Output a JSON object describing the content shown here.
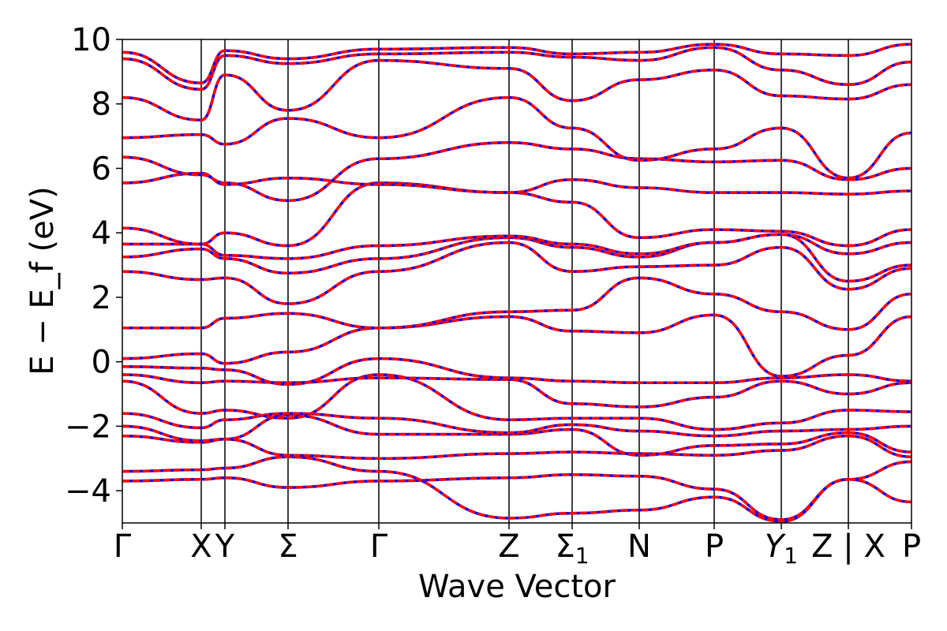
{
  "chart_data": {
    "type": "line",
    "title": "",
    "xlabel": "Wave Vector",
    "ylabel": "E − E_f (eV)",
    "ylim": [
      -5,
      10
    ],
    "yticks": [
      -4,
      -2,
      0,
      2,
      4,
      6,
      8,
      10
    ],
    "ytick_labels": [
      "−4",
      "−2",
      "0",
      "2",
      "4",
      "6",
      "8",
      "10"
    ],
    "xlim": [
      0,
      10
    ],
    "kpoints": [
      {
        "label": "Γ",
        "x": 0
      },
      {
        "label": "X",
        "x": 1.0
      },
      {
        "label": "Y",
        "x": 1.3
      },
      {
        "label": "Σ",
        "x": 2.1
      },
      {
        "label": "Γ",
        "x": 3.25
      },
      {
        "label": "Z",
        "x": 4.9
      },
      {
        "label": "Σ",
        "sub": "1",
        "x": 5.7
      },
      {
        "label": "N",
        "x": 6.55
      },
      {
        "label": "P",
        "x": 7.5
      },
      {
        "label": "Y",
        "sub": "1",
        "x": 8.35,
        "italic": true
      },
      {
        "label": "Z | X",
        "x": 9.2
      },
      {
        "label": "P",
        "x": 10.0
      }
    ],
    "vlines": [
      1.0,
      1.3,
      2.1,
      3.25,
      4.9,
      5.7,
      6.55,
      7.5,
      8.35,
      9.2
    ],
    "segment_breaks": [
      9.2
    ],
    "series_colors": {
      "primary": "#0000ff",
      "overlay": "#ff0000"
    },
    "band_x": [
      0,
      1.0,
      1.3,
      2.1,
      3.25,
      4.9,
      5.7,
      6.55,
      7.5,
      8.35,
      9.2,
      10.0
    ],
    "bands": [
      [
        -3.7,
        -3.65,
        -3.6,
        -3.9,
        -3.7,
        -3.6,
        -3.5,
        -3.55,
        -3.95,
        -4.9,
        -3.65,
        -4.35
      ],
      [
        -3.4,
        -3.35,
        -3.3,
        -2.95,
        -3.4,
        -4.85,
        -4.7,
        -4.6,
        -4.2,
        -4.95,
        -3.65,
        -3.1
      ],
      [
        -2.3,
        -2.5,
        -2.4,
        -2.9,
        -3.0,
        -2.85,
        -2.8,
        -2.85,
        -2.9,
        -2.75,
        -2.3,
        -2.95
      ],
      [
        -2.0,
        -2.45,
        -2.4,
        -1.65,
        -2.25,
        -2.25,
        -2.1,
        -2.9,
        -2.6,
        -2.55,
        -2.2,
        -2.8
      ],
      [
        -1.6,
        -2.05,
        -1.8,
        -1.6,
        -1.75,
        -2.2,
        -1.95,
        -2.15,
        -2.3,
        -2.15,
        -2.1,
        -2.0
      ],
      [
        -0.6,
        -1.6,
        -1.5,
        -1.75,
        -0.4,
        -1.8,
        -1.75,
        -1.75,
        -2.1,
        -1.9,
        -1.5,
        -1.55
      ],
      [
        -0.4,
        -0.65,
        -0.6,
        -0.65,
        -0.5,
        -0.55,
        -1.3,
        -1.4,
        -1.1,
        -0.6,
        -1.0,
        -0.65
      ],
      [
        -0.15,
        -0.2,
        -0.25,
        -0.7,
        0.1,
        -0.5,
        -0.6,
        -0.65,
        -0.65,
        -0.5,
        -0.4,
        -0.6
      ],
      [
        0.1,
        0.25,
        -0.05,
        0.3,
        1.05,
        1.4,
        0.95,
        0.9,
        1.45,
        -0.45,
        0.2,
        1.4
      ],
      [
        1.05,
        1.05,
        1.35,
        1.5,
        1.05,
        1.55,
        1.6,
        2.6,
        2.1,
        1.55,
        1.0,
        2.1
      ],
      [
        2.8,
        2.55,
        2.6,
        1.8,
        2.8,
        3.7,
        2.8,
        2.95,
        3.0,
        3.55,
        2.25,
        2.9
      ],
      [
        3.25,
        3.5,
        3.2,
        2.75,
        3.2,
        3.85,
        3.55,
        3.25,
        3.7,
        3.95,
        2.5,
        3.0
      ],
      [
        3.65,
        3.65,
        3.3,
        3.2,
        3.6,
        3.9,
        3.65,
        3.35,
        3.7,
        3.95,
        3.35,
        3.7
      ],
      [
        4.15,
        3.65,
        4.0,
        3.6,
        5.55,
        5.25,
        4.95,
        3.85,
        4.1,
        4.05,
        3.6,
        4.1
      ],
      [
        5.55,
        5.85,
        5.5,
        5.7,
        5.5,
        5.25,
        5.65,
        5.4,
        5.25,
        5.25,
        5.2,
        5.3
      ],
      [
        6.35,
        5.8,
        5.55,
        5.0,
        6.3,
        6.8,
        6.6,
        6.3,
        6.2,
        6.25,
        5.65,
        6.0
      ],
      [
        6.95,
        7.05,
        6.75,
        7.55,
        6.95,
        8.2,
        7.25,
        6.25,
        6.6,
        7.25,
        5.7,
        7.1
      ],
      [
        8.2,
        7.5,
        8.9,
        7.8,
        9.35,
        9.1,
        8.1,
        8.75,
        9.05,
        8.25,
        8.15,
        8.6
      ],
      [
        9.4,
        8.45,
        9.5,
        9.25,
        9.55,
        9.6,
        9.45,
        9.35,
        9.75,
        9.05,
        8.6,
        9.3
      ],
      [
        9.6,
        8.65,
        9.65,
        9.4,
        9.7,
        9.75,
        9.55,
        9.6,
        9.85,
        9.55,
        9.5,
        9.85
      ]
    ]
  }
}
